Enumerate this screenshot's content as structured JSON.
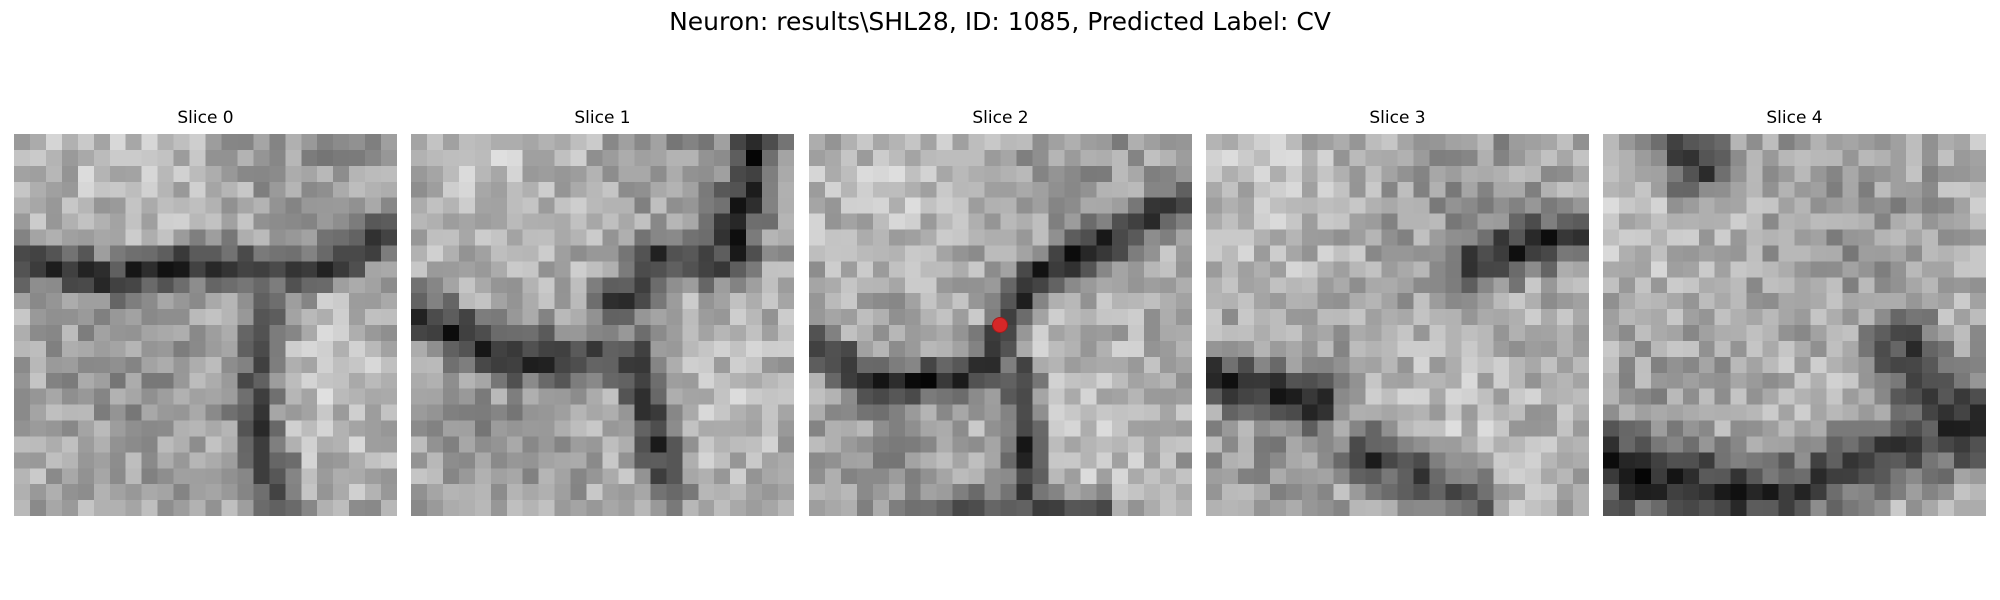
{
  "figure": {
    "title": "Neuron: results\\SHL28, ID: 1085, Predicted Label: CV"
  },
  "slices": [
    {
      "label": "Slice 0",
      "has_marker": false
    },
    {
      "label": "Slice 1",
      "has_marker": false
    },
    {
      "label": "Slice 2",
      "has_marker": true
    },
    {
      "label": "Slice 3",
      "has_marker": false
    },
    {
      "label": "Slice 4",
      "has_marker": false
    }
  ],
  "marker": {
    "color": "#d62728",
    "shape": "dot",
    "icon": "marker-dot-icon"
  },
  "colormap": "gray"
}
